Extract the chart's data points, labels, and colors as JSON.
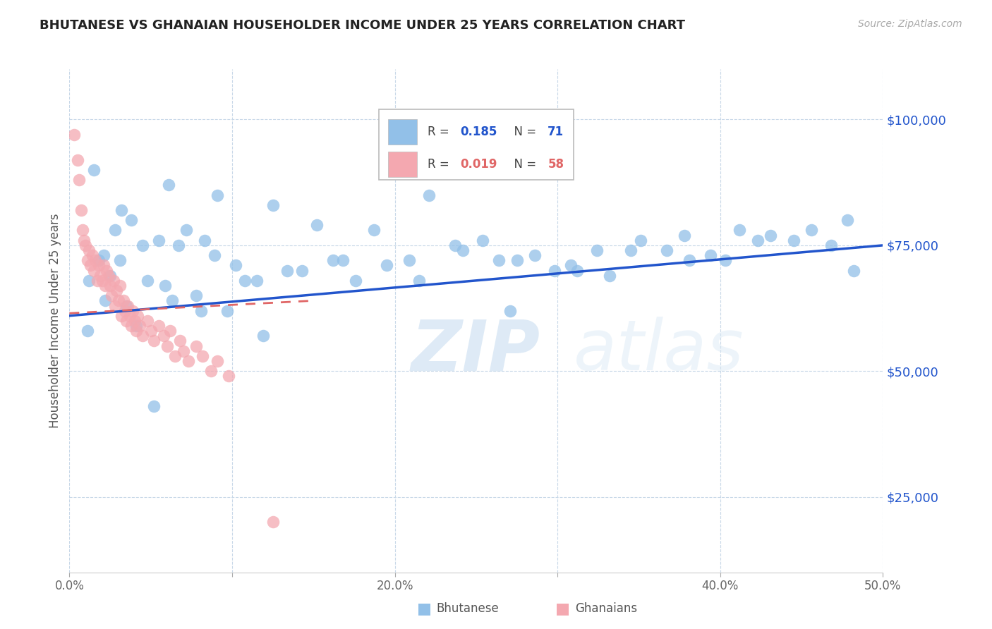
{
  "title": "BHUTANESE VS GHANAIAN HOUSEHOLDER INCOME UNDER 25 YEARS CORRELATION CHART",
  "source": "Source: ZipAtlas.com",
  "ylabel": "Householder Income Under 25 years",
  "xlim": [
    0,
    50
  ],
  "ylim": [
    10000,
    110000
  ],
  "yticks": [
    25000,
    50000,
    75000,
    100000
  ],
  "ytick_labels": [
    "$25,000",
    "$50,000",
    "$75,000",
    "$100,000"
  ],
  "xticks": [
    0,
    10,
    20,
    30,
    40,
    50
  ],
  "xtick_labels": [
    "0.0%",
    "",
    "20.0%",
    "",
    "40.0%",
    "50.0%"
  ],
  "bhutanese_color": "#92c0e8",
  "ghanaian_color": "#f4a8b0",
  "trend_blue_color": "#2255cc",
  "trend_pink_color": "#e06666",
  "watermark_text": "ZIP",
  "watermark_text2": "atlas",
  "bhutanese_x": [
    3.2,
    6.1,
    1.5,
    2.8,
    4.5,
    7.2,
    1.2,
    2.1,
    3.8,
    5.5,
    8.3,
    1.8,
    9.1,
    12.5,
    15.2,
    18.7,
    22.1,
    25.4,
    28.6,
    31.2,
    34.5,
    38.1,
    41.2,
    44.5,
    47.8,
    2.5,
    3.1,
    4.8,
    6.7,
    8.9,
    10.2,
    13.4,
    16.8,
    19.5,
    23.7,
    26.4,
    29.8,
    33.2,
    36.7,
    39.4,
    43.1,
    46.8,
    2.2,
    4.1,
    5.9,
    7.8,
    9.7,
    11.5,
    14.3,
    17.6,
    20.9,
    24.2,
    27.5,
    30.8,
    35.1,
    40.3,
    45.6,
    1.1,
    3.5,
    6.3,
    8.1,
    10.8,
    16.2,
    21.5,
    32.4,
    37.8,
    42.3,
    48.2,
    5.2,
    11.9,
    27.1
  ],
  "bhutanese_y": [
    82000,
    87000,
    90000,
    78000,
    75000,
    78000,
    68000,
    73000,
    80000,
    76000,
    76000,
    72000,
    85000,
    83000,
    79000,
    78000,
    85000,
    76000,
    73000,
    70000,
    74000,
    72000,
    78000,
    76000,
    80000,
    69000,
    72000,
    68000,
    75000,
    73000,
    71000,
    70000,
    72000,
    71000,
    75000,
    72000,
    70000,
    69000,
    74000,
    73000,
    77000,
    75000,
    64000,
    59000,
    67000,
    65000,
    62000,
    68000,
    70000,
    68000,
    72000,
    74000,
    72000,
    71000,
    76000,
    72000,
    78000,
    58000,
    63000,
    64000,
    62000,
    68000,
    72000,
    68000,
    74000,
    77000,
    76000,
    70000,
    43000,
    57000,
    62000
  ],
  "ghanaian_x": [
    0.3,
    0.5,
    0.6,
    0.7,
    0.8,
    0.9,
    1.0,
    1.1,
    1.2,
    1.3,
    1.4,
    1.5,
    1.6,
    1.7,
    1.8,
    1.9,
    2.0,
    2.1,
    2.2,
    2.3,
    2.4,
    2.5,
    2.6,
    2.7,
    2.8,
    2.9,
    3.0,
    3.1,
    3.2,
    3.3,
    3.4,
    3.5,
    3.6,
    3.7,
    3.8,
    3.9,
    4.0,
    4.1,
    4.2,
    4.3,
    4.5,
    4.8,
    5.0,
    5.2,
    5.5,
    5.8,
    6.0,
    6.2,
    6.5,
    6.8,
    7.0,
    7.3,
    7.8,
    8.2,
    8.7,
    9.1,
    9.8,
    12.5
  ],
  "ghanaian_y": [
    97000,
    92000,
    88000,
    82000,
    78000,
    76000,
    75000,
    72000,
    74000,
    71000,
    73000,
    70000,
    72000,
    68000,
    71000,
    69000,
    68000,
    71000,
    67000,
    70000,
    69000,
    67000,
    65000,
    68000,
    63000,
    66000,
    64000,
    67000,
    61000,
    64000,
    62000,
    60000,
    63000,
    61000,
    59000,
    62000,
    60000,
    58000,
    61000,
    59000,
    57000,
    60000,
    58000,
    56000,
    59000,
    57000,
    55000,
    58000,
    53000,
    56000,
    54000,
    52000,
    55000,
    53000,
    50000,
    52000,
    49000,
    20000
  ],
  "trend_blue_x0": 0,
  "trend_blue_x1": 50,
  "trend_blue_y0": 61000,
  "trend_blue_y1": 75000,
  "trend_pink_x0": 0,
  "trend_pink_x1": 15,
  "trend_pink_y0": 61500,
  "trend_pink_y1": 64000
}
